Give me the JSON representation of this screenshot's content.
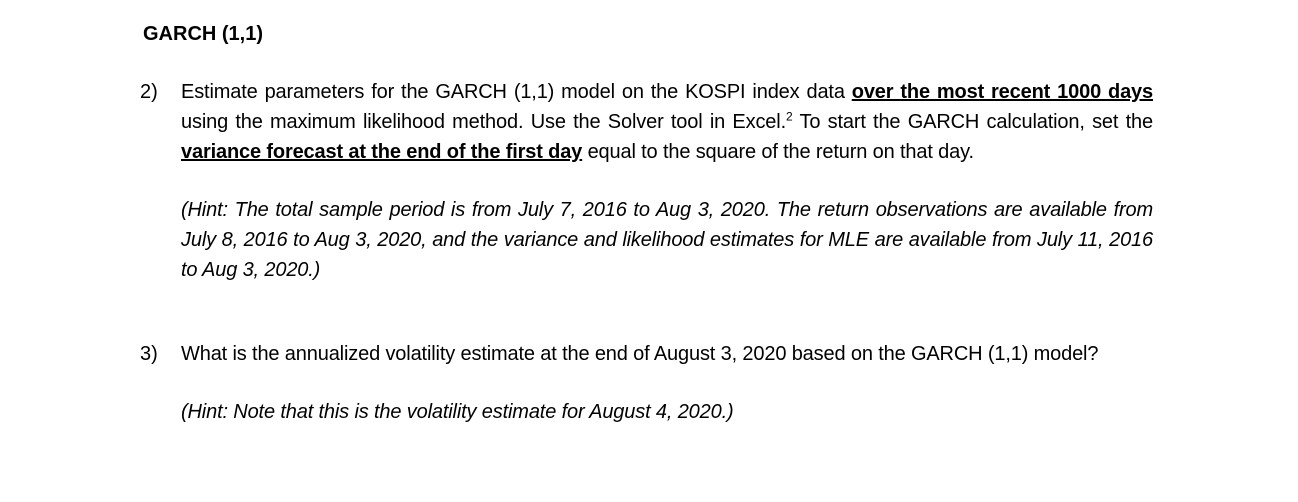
{
  "heading": "GARCH (1,1)",
  "q2": {
    "number": "2)",
    "t1": "Estimate parameters for the GARCH (1,1) model on the KOSPI index data ",
    "u1": "over the most recent 1000 days",
    "t2": " using the maximum likelihood method. Use the Solver tool in Excel.",
    "footnote": "2",
    "t3": " To start the GARCH calculation, set the ",
    "u2": "variance forecast at the end of the first day",
    "t4": " equal to the square of the return on that day.",
    "hint": "(Hint: The total sample period is from July 7, 2016 to Aug 3, 2020. The return observations are available from July 8, 2016 to Aug 3, 2020, and the variance and likelihood estimates for MLE are available from July 11, 2016 to Aug 3, 2020.)"
  },
  "q3": {
    "number": "3)",
    "text": "What is the annualized volatility estimate at the end of August 3, 2020 based on the GARCH (1,1) model?",
    "hint": "(Hint: Note that this is the volatility estimate for August 4, 2020.)"
  }
}
